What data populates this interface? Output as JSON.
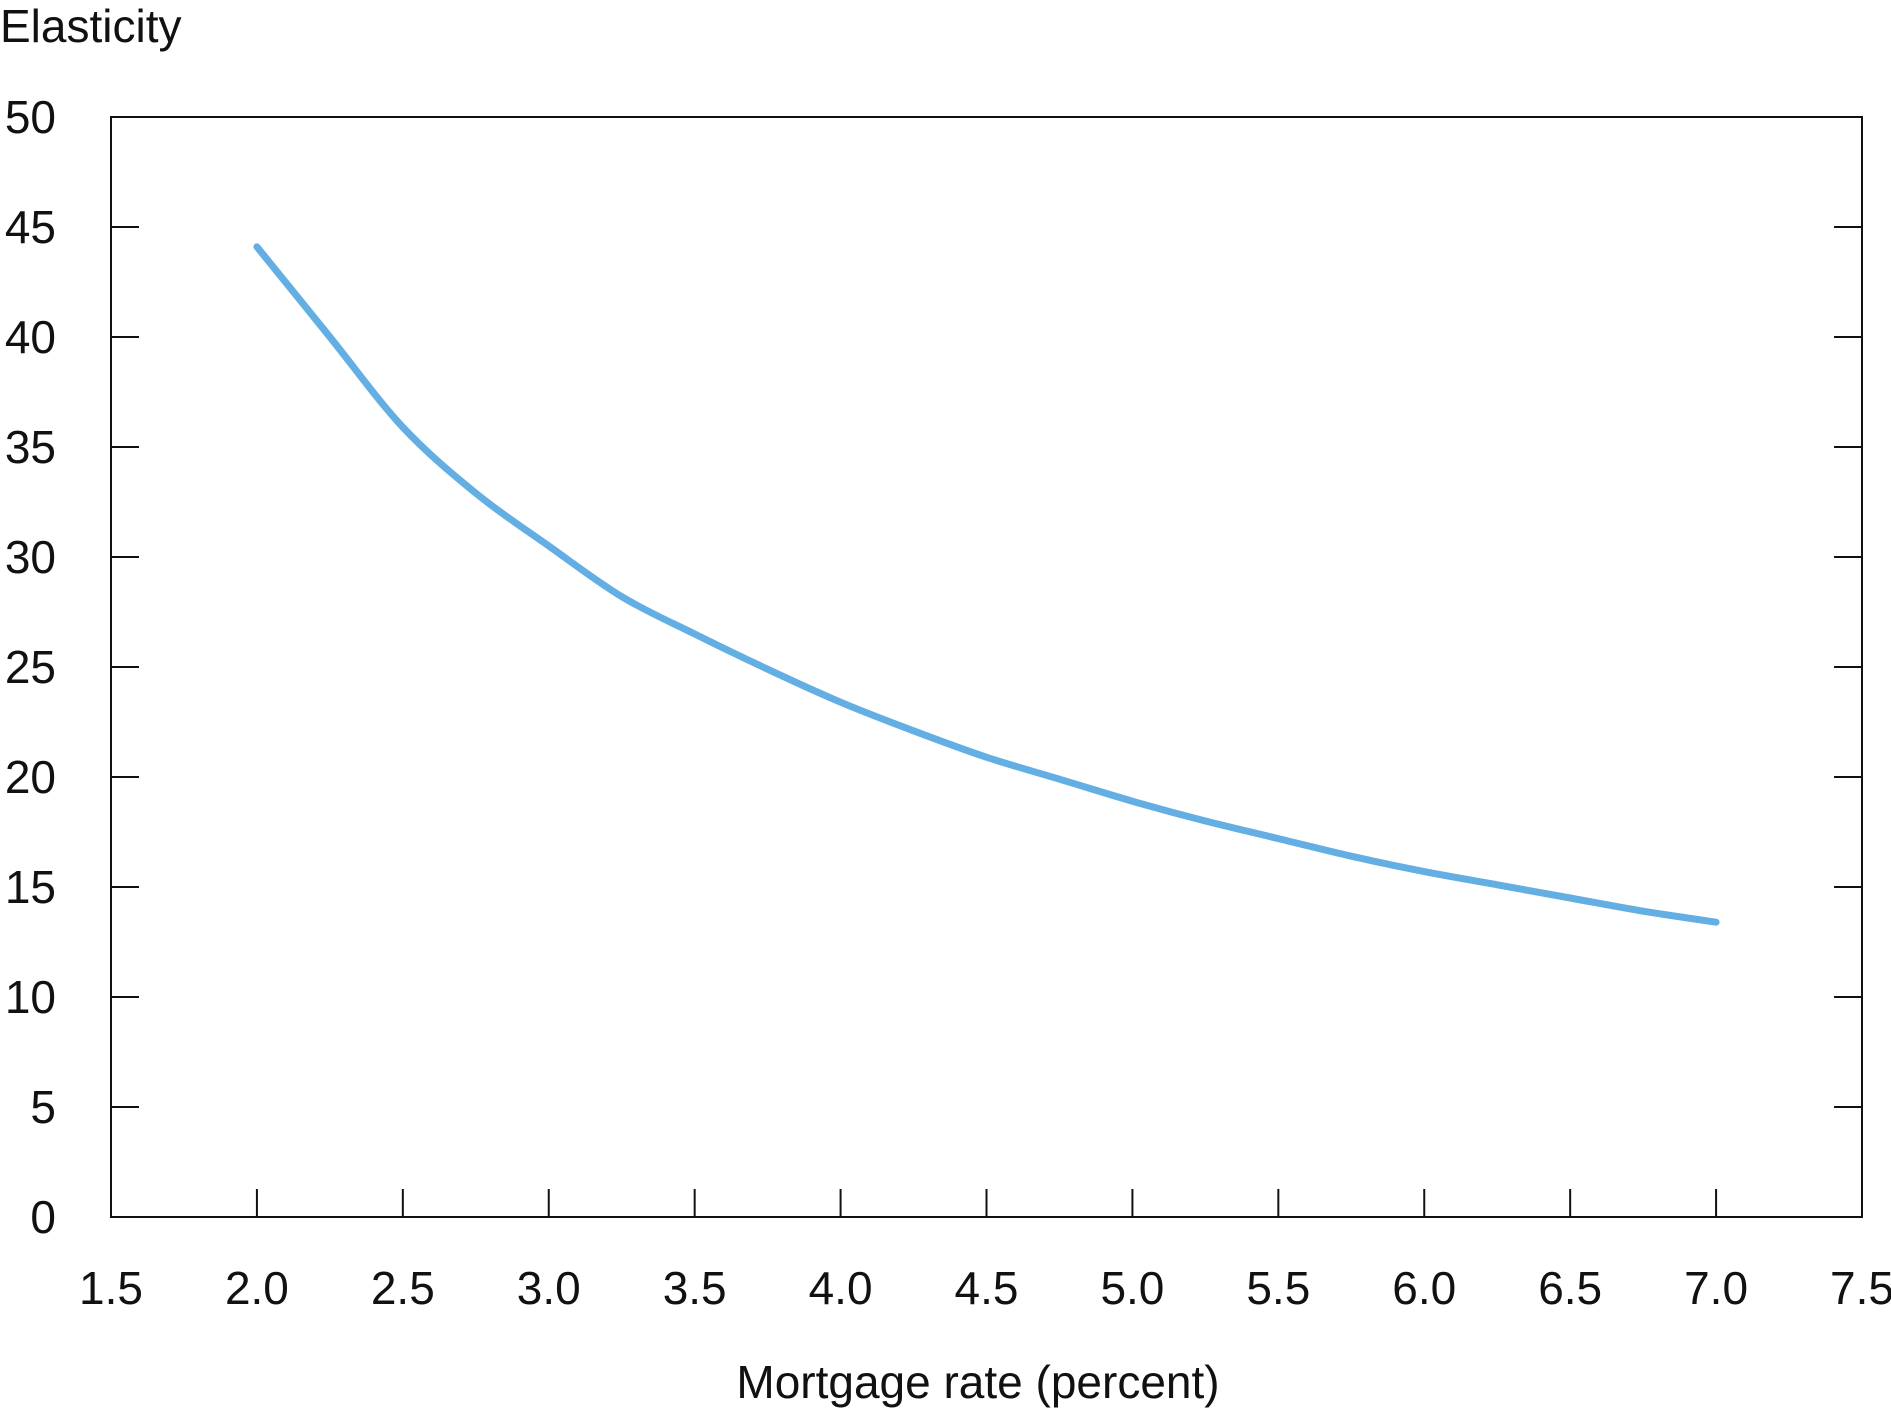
{
  "chart_data": {
    "type": "line",
    "title": "",
    "ylabel": "Elasticity",
    "xlabel": "Mortgage rate (percent)",
    "xlim": [
      1.5,
      7.5
    ],
    "ylim": [
      0,
      50
    ],
    "x_ticks": [
      "1.5",
      "2.0",
      "2.5",
      "3.0",
      "3.5",
      "4.0",
      "4.5",
      "5.0",
      "5.5",
      "6.0",
      "6.5",
      "7.0",
      "7.5"
    ],
    "y_ticks": [
      "0",
      "5",
      "10",
      "15",
      "20",
      "25",
      "30",
      "35",
      "40",
      "45",
      "50"
    ],
    "grid": false,
    "legend": "none",
    "series": [
      {
        "color": "#63aee2",
        "x": [
          2.0,
          2.25,
          2.5,
          2.75,
          3.0,
          3.25,
          3.5,
          3.75,
          4.0,
          4.25,
          4.5,
          4.75,
          5.0,
          5.25,
          5.5,
          5.75,
          6.0,
          6.25,
          6.5,
          6.75,
          7.0
        ],
        "y": [
          44.1,
          40.0,
          35.9,
          32.9,
          30.5,
          28.2,
          26.5,
          24.9,
          23.4,
          22.1,
          20.9,
          19.9,
          18.9,
          18.0,
          17.2,
          16.4,
          15.7,
          15.1,
          14.5,
          13.9,
          13.4
        ]
      }
    ]
  }
}
